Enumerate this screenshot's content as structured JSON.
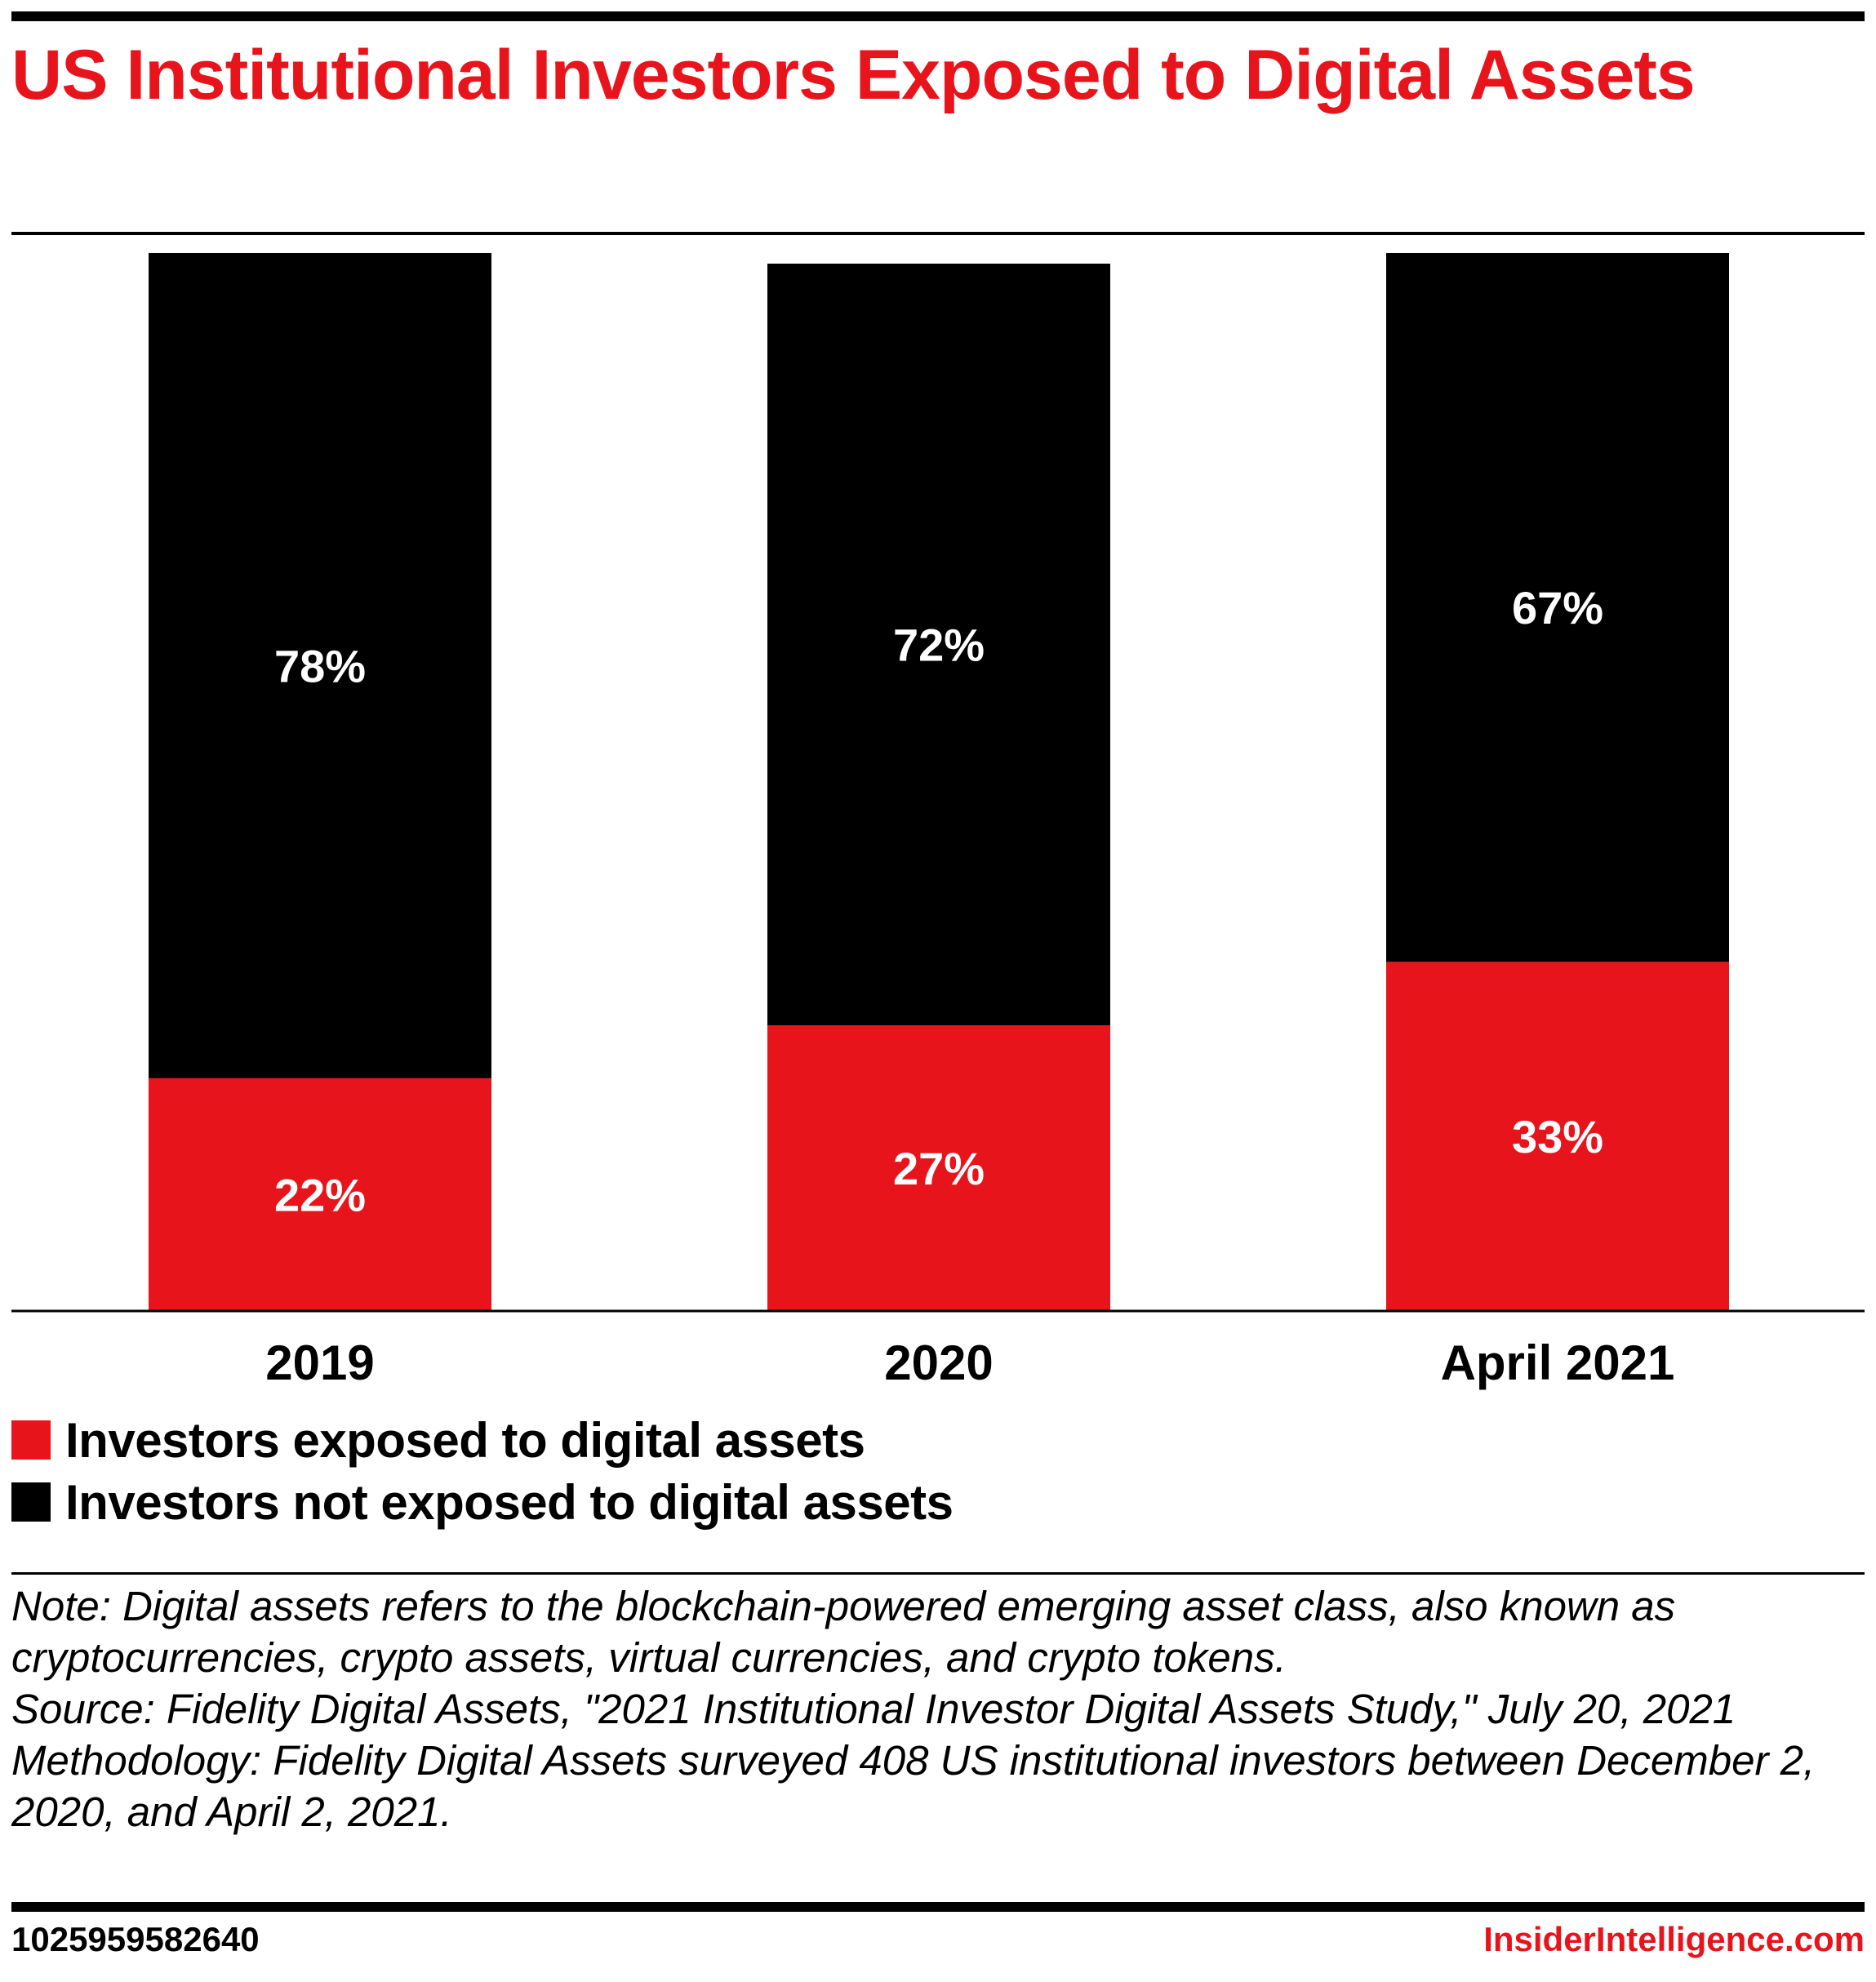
{
  "title": "US Institutional Investors Exposed to Digital Assets",
  "colors": {
    "exposed": "#e8141c",
    "not_exposed": "#000000",
    "title": "#e8141c"
  },
  "chart_data": {
    "type": "bar",
    "stacked": true,
    "categories": [
      "2019",
      "2020",
      "April 2021"
    ],
    "series": [
      {
        "name": "Investors exposed to digital assets",
        "values": [
          22,
          27,
          33
        ],
        "color": "#e8141c"
      },
      {
        "name": "Investors not exposed to digital assets",
        "values": [
          78,
          72,
          67
        ],
        "color": "#000000"
      }
    ],
    "value_labels": [
      [
        "22%",
        "27%",
        "33%"
      ],
      [
        "78%",
        "72%",
        "67%"
      ]
    ],
    "ylim": [
      0,
      100
    ],
    "grid": false,
    "legend_position": "bottom-left"
  },
  "legend": [
    {
      "label": "Investors exposed to digital assets",
      "color": "#e8141c"
    },
    {
      "label": "Investors not exposed to digital assets",
      "color": "#000000"
    }
  ],
  "notes": {
    "note": "Note: Digital assets refers to the blockchain-powered emerging asset class, also known as cryptocurrencies, crypto assets, virtual currencies, and crypto tokens.",
    "source": "Source: Fidelity Digital Assets, \"2021 Institutional Investor Digital Assets Study,\" July 20, 2021",
    "methodology": "Methodology: Fidelity Digital Assets surveyed 408 US institutional investors between December 2, 2020, and April 2, 2021."
  },
  "footer": {
    "id": "1025959582640",
    "brand": "InsiderIntelligence.com"
  }
}
